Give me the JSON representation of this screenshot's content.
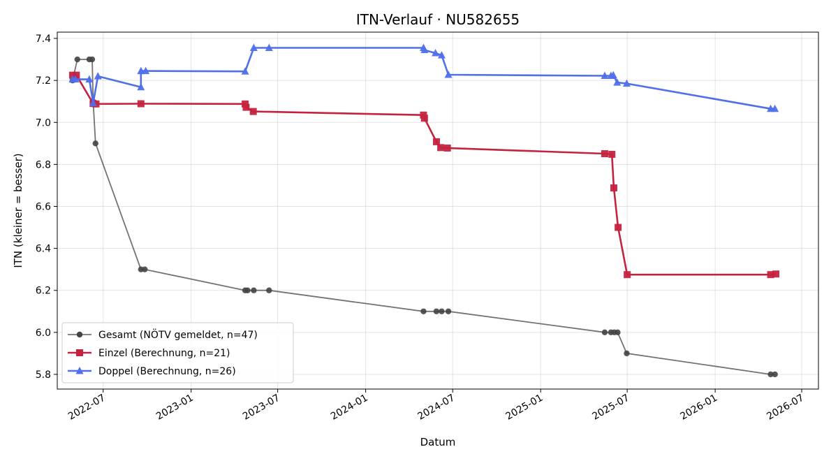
{
  "chart_data": {
    "type": "line",
    "title": "ITN-Verlauf · NU582655",
    "xlabel": "Datum",
    "ylabel": "ITN  (kleiner = besser)",
    "ylim": [
      5.73,
      7.43
    ],
    "xlim": [
      "2022-03-27",
      "2026-08-05"
    ],
    "grid": true,
    "legend_position": "lower-left",
    "y_ticks": [
      5.8,
      6.0,
      6.2,
      6.4,
      6.6,
      6.8,
      7.0,
      7.2,
      7.4
    ],
    "y_tick_labels": [
      "5.8",
      "6.0",
      "6.2",
      "6.4",
      "6.6",
      "6.8",
      "7.0",
      "7.2",
      "7.4"
    ],
    "x_ticks": [
      "2022-07-01",
      "2023-01-01",
      "2023-07-01",
      "2024-01-01",
      "2024-07-01",
      "2025-01-01",
      "2025-07-01",
      "2026-01-01",
      "2026-07-01"
    ],
    "x_tick_labels": [
      "2022-07",
      "2023-01",
      "2023-07",
      "2024-01",
      "2024-07",
      "2025-01",
      "2025-07",
      "2026-01",
      "2026-07"
    ],
    "series": [
      {
        "name": "Gesamt (NÖTV gemeldet, n=47)",
        "color": "#444444",
        "marker": "circle",
        "points": [
          [
            "2022-04-28",
            7.2
          ],
          [
            "2022-05-08",
            7.3
          ],
          [
            "2022-06-02",
            7.3
          ],
          [
            "2022-06-08",
            7.3
          ],
          [
            "2022-06-10",
            7.1
          ],
          [
            "2022-06-15",
            6.9
          ],
          [
            "2022-09-18",
            6.3
          ],
          [
            "2022-09-26",
            6.3
          ],
          [
            "2023-04-24",
            6.2
          ],
          [
            "2023-04-29",
            6.2
          ],
          [
            "2023-05-12",
            6.2
          ],
          [
            "2023-06-13",
            6.2
          ],
          [
            "2024-05-01",
            6.1
          ],
          [
            "2024-05-28",
            6.1
          ],
          [
            "2024-06-08",
            6.1
          ],
          [
            "2024-06-22",
            6.1
          ],
          [
            "2025-05-15",
            6.0
          ],
          [
            "2025-05-28",
            6.0
          ],
          [
            "2025-06-04",
            6.0
          ],
          [
            "2025-06-11",
            6.0
          ],
          [
            "2025-06-30",
            5.9
          ],
          [
            "2026-04-27",
            5.8
          ],
          [
            "2026-05-06",
            5.8
          ]
        ]
      },
      {
        "name": "Einzel (Berechnung, n=21)",
        "color": "#C4233F",
        "marker": "square",
        "points": [
          [
            "2022-04-28",
            7.225
          ],
          [
            "2022-05-06",
            7.225
          ],
          [
            "2022-06-10",
            7.09
          ],
          [
            "2022-06-16",
            7.088
          ],
          [
            "2022-09-18",
            7.089
          ],
          [
            "2023-04-24",
            7.088
          ],
          [
            "2023-04-26",
            7.072
          ],
          [
            "2023-05-11",
            7.052
          ],
          [
            "2024-05-01",
            7.035
          ],
          [
            "2024-05-03",
            7.02
          ],
          [
            "2024-05-28",
            6.908
          ],
          [
            "2024-06-06",
            6.88
          ],
          [
            "2024-06-20",
            6.878
          ],
          [
            "2025-05-15",
            6.851
          ],
          [
            "2025-05-30",
            6.848
          ],
          [
            "2025-06-03",
            6.688
          ],
          [
            "2025-06-12",
            6.5
          ],
          [
            "2025-07-01",
            6.275
          ],
          [
            "2026-04-27",
            6.275
          ],
          [
            "2026-05-08",
            6.278
          ]
        ]
      },
      {
        "name": "Doppel (Berechnung, n=26)",
        "color": "#4F6FEB",
        "marker": "triangle",
        "points": [
          [
            "2022-04-28",
            7.205
          ],
          [
            "2022-05-04",
            7.205
          ],
          [
            "2022-06-02",
            7.205
          ],
          [
            "2022-06-10",
            7.092
          ],
          [
            "2022-06-20",
            7.22
          ],
          [
            "2022-09-18",
            7.168
          ],
          [
            "2022-09-18",
            7.245
          ],
          [
            "2022-09-28",
            7.245
          ],
          [
            "2023-04-24",
            7.243
          ],
          [
            "2023-05-12",
            7.355
          ],
          [
            "2023-06-13",
            7.355
          ],
          [
            "2024-05-01",
            7.355
          ],
          [
            "2024-05-03",
            7.345
          ],
          [
            "2024-05-26",
            7.33
          ],
          [
            "2024-06-08",
            7.32
          ],
          [
            "2024-06-22",
            7.227
          ],
          [
            "2025-05-15",
            7.222
          ],
          [
            "2025-05-28",
            7.222
          ],
          [
            "2025-06-02",
            7.225
          ],
          [
            "2025-06-10",
            7.19
          ],
          [
            "2025-06-30",
            7.185
          ],
          [
            "2026-04-27",
            7.065
          ],
          [
            "2026-05-06",
            7.065
          ]
        ]
      }
    ]
  }
}
